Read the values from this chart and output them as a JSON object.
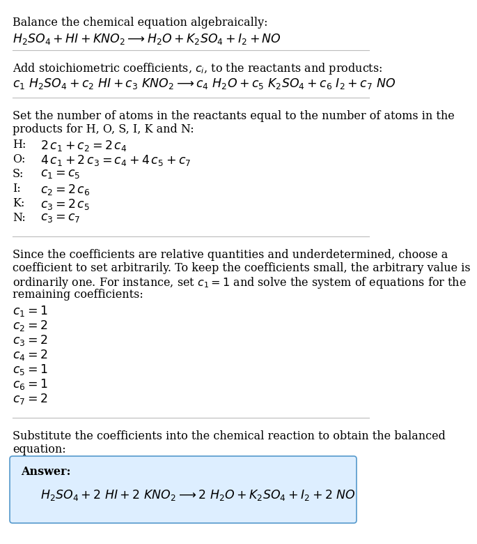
{
  "bg_color": "#ffffff",
  "text_color": "#000000",
  "answer_box_color": "#ddeeff",
  "answer_box_edge": "#5599cc",
  "section1_title": "Balance the chemical equation algebraically:",
  "section1_eq": "$H_2SO_4 + HI + KNO_2 \\longrightarrow H_2O + K_2SO_4 + I_2 + NO$",
  "section2_title_plain": "Add stoichiometric coefficients, ",
  "section2_title_ci": "$c_i$",
  "section2_title_end": ", to the reactants and products:",
  "section2_eq": "$c_1\\ H_2SO_4 + c_2\\ HI + c_3\\ KNO_2 \\longrightarrow c_4\\ H_2O + c_5\\ K_2SO_4 + c_6\\ I_2 + c_7\\ NO$",
  "section3_title_line1": "Set the number of atoms in the reactants equal to the number of atoms in the",
  "section3_title_line2": "products for H, O, S, I, K and N:",
  "section3_equations": [
    [
      "H:",
      "$2\\,c_1 + c_2 = 2\\,c_4$"
    ],
    [
      "O:",
      "$4\\,c_1 + 2\\,c_3 = c_4 + 4\\,c_5 + c_7$"
    ],
    [
      "S:",
      "$c_1 = c_5$"
    ],
    [
      "I:",
      "$c_2 = 2\\,c_6$"
    ],
    [
      "K:",
      "$c_3 = 2\\,c_5$"
    ],
    [
      "N:",
      "$c_3 = c_7$"
    ]
  ],
  "section4_line1": "Since the coefficients are relative quantities and underdetermined, choose a",
  "section4_line2": "coefficient to set arbitrarily. To keep the coefficients small, the arbitrary value is",
  "section4_line3_plain": "ordinarily one. For instance, set ",
  "section4_line3_math": "$c_1 = 1$",
  "section4_line3_end": " and solve the system of equations for the",
  "section4_line4": "remaining coefficients:",
  "section4_coeffs": [
    "$c_1 = 1$",
    "$c_2 = 2$",
    "$c_3 = 2$",
    "$c_4 = 2$",
    "$c_5 = 1$",
    "$c_6 = 1$",
    "$c_7 = 2$"
  ],
  "section5_line1": "Substitute the coefficients into the chemical reaction to obtain the balanced",
  "section5_line2": "equation:",
  "answer_label": "Answer:",
  "answer_eq": "$H_2SO_4 + 2\\ HI + 2\\ KNO_2 \\longrightarrow 2\\ H_2O + K_2SO_4 + I_2 + 2\\ NO$"
}
